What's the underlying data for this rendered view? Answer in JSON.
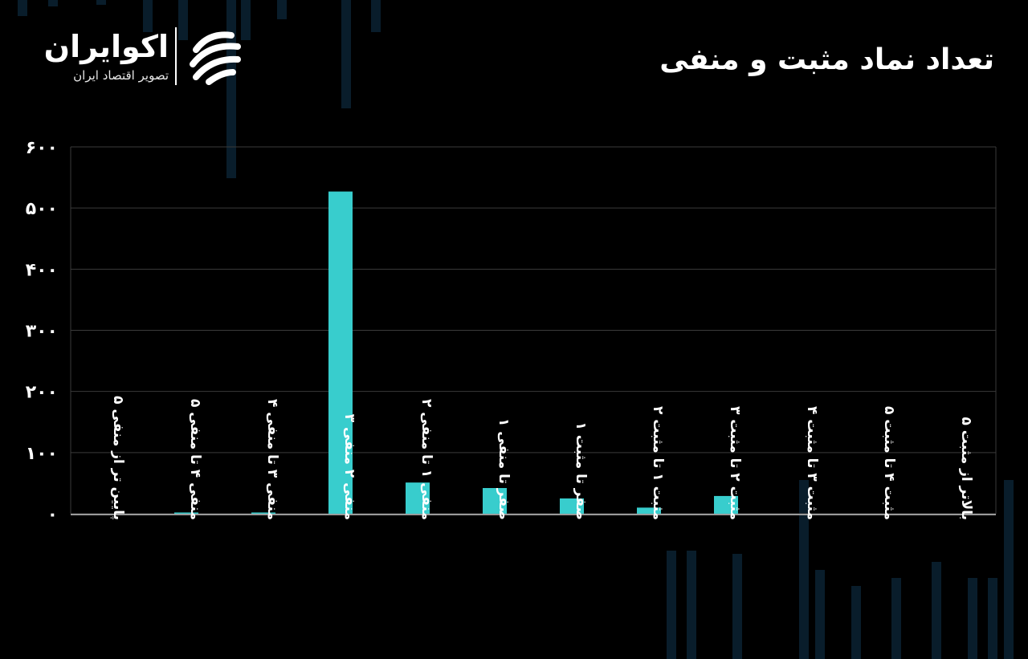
{
  "brand": {
    "name": "اکوایران",
    "tagline": "تصویر اقتصاد ایران"
  },
  "colors": {
    "background": "#000000",
    "bar": "#38cdcd",
    "grid": "#3a3a3a",
    "text": "#ffffff",
    "decor": "#0b2233"
  },
  "chart_data": {
    "type": "bar",
    "title": "تعداد نماد مثبت و منفی",
    "categories": [
      "پایین تر از منفی ۵",
      "منفی ۴ تا منفی ۵",
      "منفی ۳ تا منفی ۴",
      "منفی ۲ منفی ۳",
      "منفی ۱ تا منفی ۲",
      "صفر تا منفی ۱",
      "صفر تا مثبت ۱",
      "مثبت ۱ تا مثبت ۲",
      "مثبت ۲ تا مثبت ۳",
      "مثبت ۳ تا مثبت ۴",
      "مثبت ۴ تا مثبت ۵",
      "بالاتر از مثبت ۵"
    ],
    "values": [
      0,
      2,
      2,
      527,
      51,
      42,
      25,
      10,
      29,
      0,
      0,
      0
    ],
    "ylim": [
      0,
      600
    ],
    "yticks": [
      0,
      100,
      200,
      300,
      400,
      500,
      600
    ],
    "ytick_labels": [
      "۰",
      "۱۰۰",
      "۲۰۰",
      "۳۰۰",
      "۴۰۰",
      "۵۰۰",
      "۶۰۰"
    ],
    "grid": true,
    "xlabel": "",
    "ylabel": ""
  }
}
